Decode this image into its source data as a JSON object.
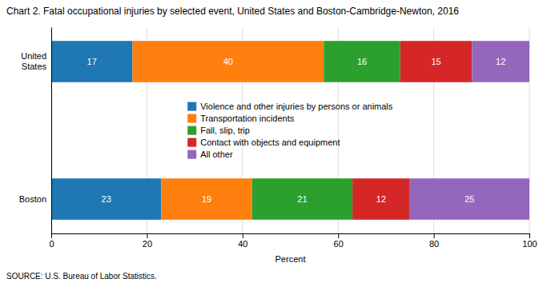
{
  "chart_data": {
    "type": "bar",
    "title": "Chart 2. Fatal occupational injuries by selected event, United States and Boston-Cambridge-Newton,  2016",
    "orientation": "horizontal",
    "stacked": true,
    "data_labels": true,
    "categories": [
      "United\nStates",
      "Boston"
    ],
    "series": [
      {
        "name": "Violence and other injuries by persons or animals",
        "values": [
          17,
          23
        ]
      },
      {
        "name": "Transportation incidents",
        "values": [
          40,
          19
        ]
      },
      {
        "name": "Fall, slip, trip",
        "values": [
          16,
          21
        ]
      },
      {
        "name": "Contact with objects and equipment",
        "values": [
          15,
          12
        ]
      },
      {
        "name": "All other",
        "values": [
          12,
          25
        ]
      }
    ],
    "xlabel": "Percent",
    "xlim": [
      0,
      100
    ],
    "xticks": [
      0,
      20,
      40,
      60,
      80,
      100
    ],
    "grid": true,
    "legend": "center",
    "annotations": [
      "SOURCE: U.S. Bureau of Labor Statistics."
    ]
  }
}
